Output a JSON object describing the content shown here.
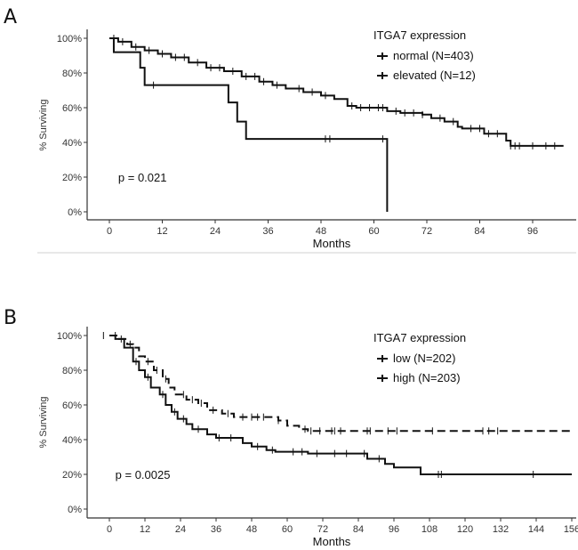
{
  "chart_data": [
    {
      "panel": "A",
      "type": "line",
      "subtype": "kaplan-meier",
      "xlabel": "Months",
      "ylabel": "% Surviving",
      "xticks": [
        0,
        12,
        24,
        36,
        48,
        60,
        72,
        84,
        96
      ],
      "xlim": [
        -2,
        104
      ],
      "yticks": [
        "0%",
        "20%",
        "40%",
        "60%",
        "80%",
        "100%"
      ],
      "ylim": [
        0,
        100
      ],
      "legend_title": "ITGA7 expression",
      "legend_position": "top-right",
      "annotation": "p = 0.021",
      "series": [
        {
          "name": "normal (N=403)",
          "style": "solid",
          "points": [
            [
              0,
              100
            ],
            [
              2,
              98
            ],
            [
              5,
              95
            ],
            [
              8,
              93
            ],
            [
              11,
              91
            ],
            [
              14,
              89
            ],
            [
              18,
              86
            ],
            [
              22,
              83
            ],
            [
              26,
              81
            ],
            [
              30,
              78
            ],
            [
              34,
              75
            ],
            [
              37,
              73
            ],
            [
              40,
              71
            ],
            [
              44,
              69
            ],
            [
              48,
              67
            ],
            [
              51,
              65
            ],
            [
              54,
              61
            ],
            [
              56,
              60
            ],
            [
              61,
              60
            ],
            [
              63,
              58
            ],
            [
              66,
              57
            ],
            [
              71,
              56
            ],
            [
              73,
              54
            ],
            [
              76,
              52
            ],
            [
              79,
              49
            ],
            [
              80,
              48
            ],
            [
              85,
              45
            ],
            [
              90,
              41
            ],
            [
              91,
              38
            ],
            [
              103,
              38
            ]
          ],
          "censored": [
            1,
            3,
            6,
            9,
            12,
            15,
            17,
            20,
            23,
            25,
            28,
            31,
            33,
            35,
            38,
            43,
            46,
            49,
            55,
            57,
            59,
            61,
            62,
            65,
            67,
            69,
            71,
            75,
            78,
            82,
            84,
            86,
            88,
            91,
            92,
            93,
            96,
            99,
            101
          ]
        },
        {
          "name": "elevated (N=12)",
          "style": "solid",
          "points": [
            [
              0,
              100
            ],
            [
              1,
              92
            ],
            [
              7,
              92
            ],
            [
              7,
              83
            ],
            [
              8,
              83
            ],
            [
              8,
              73
            ],
            [
              27,
              73
            ],
            [
              27,
              63
            ],
            [
              29,
              63
            ],
            [
              29,
              52
            ],
            [
              31,
              52
            ],
            [
              31,
              42
            ],
            [
              63,
              42
            ],
            [
              63,
              0
            ]
          ],
          "censored": [
            10,
            49,
            50,
            62
          ]
        }
      ]
    },
    {
      "panel": "B",
      "type": "line",
      "subtype": "kaplan-meier",
      "xlabel": "Months",
      "ylabel": "% Surviving",
      "xticks": [
        0,
        12,
        24,
        36,
        48,
        60,
        72,
        84,
        96,
        108,
        120,
        132,
        144,
        156
      ],
      "xlim": [
        -2,
        157
      ],
      "yticks": [
        "0%",
        "20%",
        "40%",
        "60%",
        "80%",
        "100%"
      ],
      "ylim": [
        0,
        100
      ],
      "legend_title": "ITGA7 expression",
      "legend_position": "top-right",
      "annotation": "p = 0.0025",
      "series": [
        {
          "name": "low (N=202)",
          "style": "dashed",
          "points": [
            [
              0,
              100
            ],
            [
              3,
              98
            ],
            [
              6,
              95
            ],
            [
              8,
              93
            ],
            [
              10,
              88
            ],
            [
              12,
              85
            ],
            [
              15,
              80
            ],
            [
              18,
              75
            ],
            [
              20,
              70
            ],
            [
              22,
              66
            ],
            [
              26,
              63
            ],
            [
              30,
              61
            ],
            [
              33,
              57
            ],
            [
              38,
              55
            ],
            [
              42,
              53
            ],
            [
              54,
              53
            ],
            [
              57,
              51
            ],
            [
              60,
              48
            ],
            [
              64,
              46
            ],
            [
              67,
              45
            ],
            [
              156,
              45
            ]
          ],
          "censored": [
            -2,
            2,
            7,
            13,
            16,
            19,
            25,
            28,
            31,
            35,
            40,
            45,
            48,
            50,
            52,
            57,
            66,
            68,
            71,
            75,
            76,
            78,
            87,
            88,
            94,
            97,
            109,
            126,
            128,
            131
          ]
        },
        {
          "name": "high (N=203)",
          "style": "solid",
          "points": [
            [
              0,
              100
            ],
            [
              2,
              98
            ],
            [
              5,
              93
            ],
            [
              8,
              85
            ],
            [
              10,
              80
            ],
            [
              12,
              76
            ],
            [
              14,
              70
            ],
            [
              17,
              66
            ],
            [
              19,
              60
            ],
            [
              21,
              56
            ],
            [
              23,
              52
            ],
            [
              26,
              49
            ],
            [
              28,
              46
            ],
            [
              33,
              43
            ],
            [
              36,
              41
            ],
            [
              45,
              38
            ],
            [
              48,
              36
            ],
            [
              53,
              34
            ],
            [
              56,
              33
            ],
            [
              67,
              32
            ],
            [
              87,
              29
            ],
            [
              93,
              26
            ],
            [
              96,
              24
            ],
            [
              105,
              20
            ],
            [
              156,
              20
            ]
          ],
          "censored": [
            4,
            9,
            13,
            18,
            22,
            25,
            30,
            37,
            41,
            50,
            55,
            62,
            65,
            70,
            76,
            80,
            86,
            91,
            111,
            112,
            143
          ]
        }
      ]
    }
  ]
}
